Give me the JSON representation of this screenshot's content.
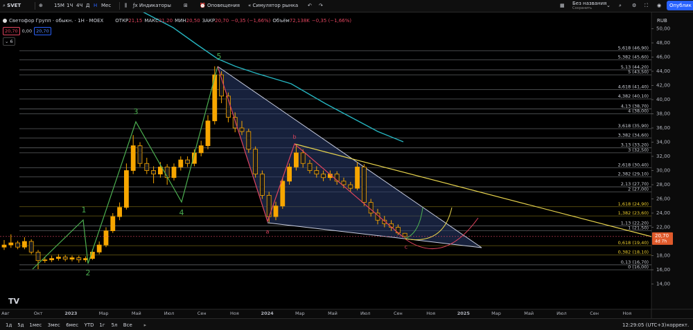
{
  "toolbar": {
    "symbol": "SVET",
    "intervals": [
      "15М",
      "1Ч",
      "4Ч",
      "Д",
      "Н",
      "Мес"
    ],
    "indicators": "Индикаторы",
    "alerts": "Оповещения",
    "replay": "Симулятор рынка",
    "layout_name": "Без названия",
    "layout_status": "Сохранить",
    "publish": "Опублик"
  },
  "legend": {
    "title": "Светофор Групп · обыкн. · 1Н · MOEX",
    "ohlc": [
      {
        "label": "ОТКР",
        "value": "21,15"
      },
      {
        "label": "МАКС",
        "value": "21,20"
      },
      {
        "label": "МИН",
        "value": "20,50"
      },
      {
        "label": "ЗАКР",
        "value": "20,70"
      }
    ],
    "change": "−0,35 (−1,66%)",
    "volume_label": "Объём",
    "volume": "72,138K",
    "volume_change": "−0,35 (−1,66%)",
    "prices": [
      "20,70",
      "0,00",
      "20,70"
    ],
    "collapsed": "6"
  },
  "currency": "RUB",
  "price_ticks": [
    {
      "value": 50,
      "label": "50,00"
    },
    {
      "value": 48,
      "label": "48,00"
    },
    {
      "value": 46,
      "label": "46,00"
    },
    {
      "value": 44,
      "label": "44,00"
    },
    {
      "value": 42,
      "label": "42,00"
    },
    {
      "value": 40,
      "label": "40,00"
    },
    {
      "value": 38,
      "label": "38,00"
    },
    {
      "value": 36,
      "label": "36,00"
    },
    {
      "value": 34,
      "label": "34,00"
    },
    {
      "value": 32,
      "label": "32,00"
    },
    {
      "value": 30,
      "label": "30,00"
    },
    {
      "value": 28,
      "label": "28,00"
    },
    {
      "value": 26,
      "label": "26,00"
    },
    {
      "value": 24,
      "label": "24,00"
    },
    {
      "value": 22,
      "label": "22,00"
    },
    {
      "value": 18,
      "label": "18,00"
    },
    {
      "value": 16,
      "label": "16,00"
    },
    {
      "value": 14,
      "label": "14,00"
    }
  ],
  "last_price": {
    "value": 20.7,
    "label": "20,70",
    "countdown": "4d 7h"
  },
  "fib_levels": [
    {
      "value": 46.9,
      "label": "5,618 (46,90)",
      "color": "#d1d4dc"
    },
    {
      "value": 45.6,
      "label": "5,382 (45,60)",
      "color": "#d1d4dc"
    },
    {
      "value": 44.2,
      "label": "5,13 (44,20)",
      "color": "#d1d4dc"
    },
    {
      "value": 43.5,
      "label": "5 (43,50)",
      "color": "#d1d4dc"
    },
    {
      "value": 41.4,
      "label": "4,618 (41,40)",
      "color": "#d1d4dc"
    },
    {
      "value": 40.1,
      "label": "4,382 (40,10)",
      "color": "#d1d4dc"
    },
    {
      "value": 38.7,
      "label": "4,13 (38,70)",
      "color": "#d1d4dc"
    },
    {
      "value": 38,
      "label": "4 (38,00)",
      "color": "#d1d4dc"
    },
    {
      "value": 35.9,
      "label": "3,618 (35,90)",
      "color": "#d1d4dc"
    },
    {
      "value": 34.6,
      "label": "3,382 (34,60)",
      "color": "#d1d4dc"
    },
    {
      "value": 33.2,
      "label": "3,13 (33,20)",
      "color": "#d1d4dc"
    },
    {
      "value": 32.5,
      "label": "3 (32,50)",
      "color": "#d1d4dc"
    },
    {
      "value": 30.4,
      "label": "2,618 (30,40)",
      "color": "#d1d4dc"
    },
    {
      "value": 29.1,
      "label": "2,382 (29,10)",
      "color": "#d1d4dc"
    },
    {
      "value": 27.7,
      "label": "2,13 (27,70)",
      "color": "#d1d4dc"
    },
    {
      "value": 27,
      "label": "2 (27,00)",
      "color": "#d1d4dc"
    },
    {
      "value": 24.9,
      "label": "1,618 (24,90)",
      "color": "#f2d22e"
    },
    {
      "value": 23.6,
      "label": "1,382 (23,60)",
      "color": "#f2d22e"
    },
    {
      "value": 22.2,
      "label": "1,13 (22,20)",
      "color": "#d1d4dc"
    },
    {
      "value": 21.5,
      "label": "1 (21,50)",
      "color": "#d1d4dc"
    },
    {
      "value": 19.4,
      "label": "0,618 (19,40)",
      "color": "#f2d22e"
    },
    {
      "value": 18.1,
      "label": "0,382 (18,10)",
      "color": "#f2d22e"
    },
    {
      "value": 16.7,
      "label": "0,13 (16,70)",
      "color": "#d1d4dc"
    },
    {
      "value": 16,
      "label": "0 (16,00)",
      "color": "#d1d4dc"
    }
  ],
  "waves": [
    "1",
    "2",
    "3",
    "4",
    "5",
    "a",
    "b",
    "c"
  ],
  "time_axis": [
    "Авг",
    "Окт",
    "2023",
    "Мар",
    "Май",
    "Июл",
    "Сен",
    "Ноя",
    "2024",
    "Мар",
    "Май",
    "Июл",
    "Сен",
    "Ноя",
    "2025",
    "Мар",
    "Май",
    "Июл",
    "Сен",
    "Ноя"
  ],
  "candles": [
    [
      19.2,
      20.2,
      18.8,
      19.5
    ],
    [
      19.5,
      21.0,
      19.1,
      19.8
    ],
    [
      19.8,
      20.1,
      18.9,
      19.2
    ],
    [
      19.2,
      20.6,
      18.9,
      20.0
    ],
    [
      20.0,
      20.3,
      18.2,
      18.5
    ],
    [
      18.5,
      18.8,
      16.1,
      17.3
    ],
    [
      17.3,
      17.8,
      17.0,
      17.4
    ],
    [
      17.4,
      18.0,
      17.1,
      17.6
    ],
    [
      17.6,
      18.2,
      17.3,
      17.8
    ],
    [
      17.8,
      18.1,
      17.2,
      17.5
    ],
    [
      17.5,
      18.0,
      17.2,
      17.7
    ],
    [
      17.7,
      18.0,
      17.0,
      17.4
    ],
    [
      17.4,
      17.9,
      17.1,
      17.6
    ],
    [
      17.6,
      18.9,
      17.4,
      18.5
    ],
    [
      18.5,
      20.0,
      18.2,
      19.5
    ],
    [
      19.5,
      22.0,
      19.2,
      21.5
    ],
    [
      21.5,
      24.0,
      21.2,
      23.5
    ],
    [
      23.5,
      25.5,
      23.0,
      24.8
    ],
    [
      24.8,
      31.0,
      24.5,
      30.0
    ],
    [
      30.0,
      35.0,
      29.5,
      33.5
    ],
    [
      33.5,
      34.0,
      30.5,
      31.0
    ],
    [
      31.0,
      31.8,
      29.5,
      30.0
    ],
    [
      30.0,
      30.6,
      28.2,
      29.5
    ],
    [
      29.5,
      31.2,
      29.0,
      30.5
    ],
    [
      30.5,
      30.9,
      28.0,
      29.0
    ],
    [
      29.0,
      31.0,
      28.6,
      30.5
    ],
    [
      30.5,
      32.0,
      30.0,
      31.5
    ],
    [
      31.5,
      32.0,
      30.5,
      31.0
    ],
    [
      31.0,
      33.0,
      30.6,
      32.5
    ],
    [
      32.5,
      34.2,
      32.0,
      33.5
    ],
    [
      33.5,
      37.8,
      33.0,
      37.0
    ],
    [
      37.0,
      44.7,
      36.5,
      43.5
    ],
    [
      43.5,
      44.0,
      39.5,
      40.5
    ],
    [
      40.5,
      41.0,
      36.8,
      37.5
    ],
    [
      37.5,
      38.2,
      35.4,
      36.0
    ],
    [
      36.0,
      37.0,
      35.0,
      35.5
    ],
    [
      35.5,
      35.9,
      32.5,
      33.0
    ],
    [
      33.0,
      33.4,
      29.0,
      29.5
    ],
    [
      29.5,
      30.0,
      26.0,
      26.5
    ],
    [
      26.5,
      27.0,
      22.7,
      23.5
    ],
    [
      23.5,
      25.6,
      23.0,
      25.0
    ],
    [
      25.0,
      29.0,
      24.6,
      28.5
    ],
    [
      28.5,
      31.0,
      28.0,
      30.5
    ],
    [
      30.5,
      33.6,
      30.0,
      32.5
    ],
    [
      32.5,
      33.0,
      30.4,
      31.0
    ],
    [
      31.0,
      31.5,
      29.6,
      30.0
    ],
    [
      30.0,
      30.6,
      29.0,
      29.5
    ],
    [
      29.5,
      30.0,
      28.5,
      29.0
    ],
    [
      29.0,
      30.0,
      28.6,
      29.5
    ],
    [
      29.5,
      29.9,
      28.0,
      28.5
    ],
    [
      28.5,
      29.0,
      27.5,
      28.0
    ],
    [
      28.0,
      28.4,
      27.0,
      27.5
    ],
    [
      27.5,
      31.2,
      27.2,
      30.5
    ],
    [
      30.5,
      30.9,
      25.0,
      25.5
    ],
    [
      25.5,
      26.0,
      23.5,
      24.0
    ],
    [
      24.0,
      24.6,
      22.4,
      23.0
    ],
    [
      23.0,
      23.6,
      22.0,
      22.5
    ],
    [
      22.5,
      23.0,
      21.5,
      22.0
    ],
    [
      22.0,
      22.4,
      20.9,
      21.2
    ],
    [
      21.15,
      21.2,
      20.5,
      20.7
    ]
  ],
  "candle_colors": {
    "up": "#f7a600",
    "down": "#1c1c1c",
    "border": "#f7a600"
  },
  "bottom_bar": {
    "ranges": [
      "1д",
      "5д",
      "1мес",
      "3мес",
      "6мес",
      "YTD",
      "1г",
      "5л",
      "Все"
    ],
    "clock": "12:29:05 (UTC+3)",
    "adjust": "коррект."
  }
}
